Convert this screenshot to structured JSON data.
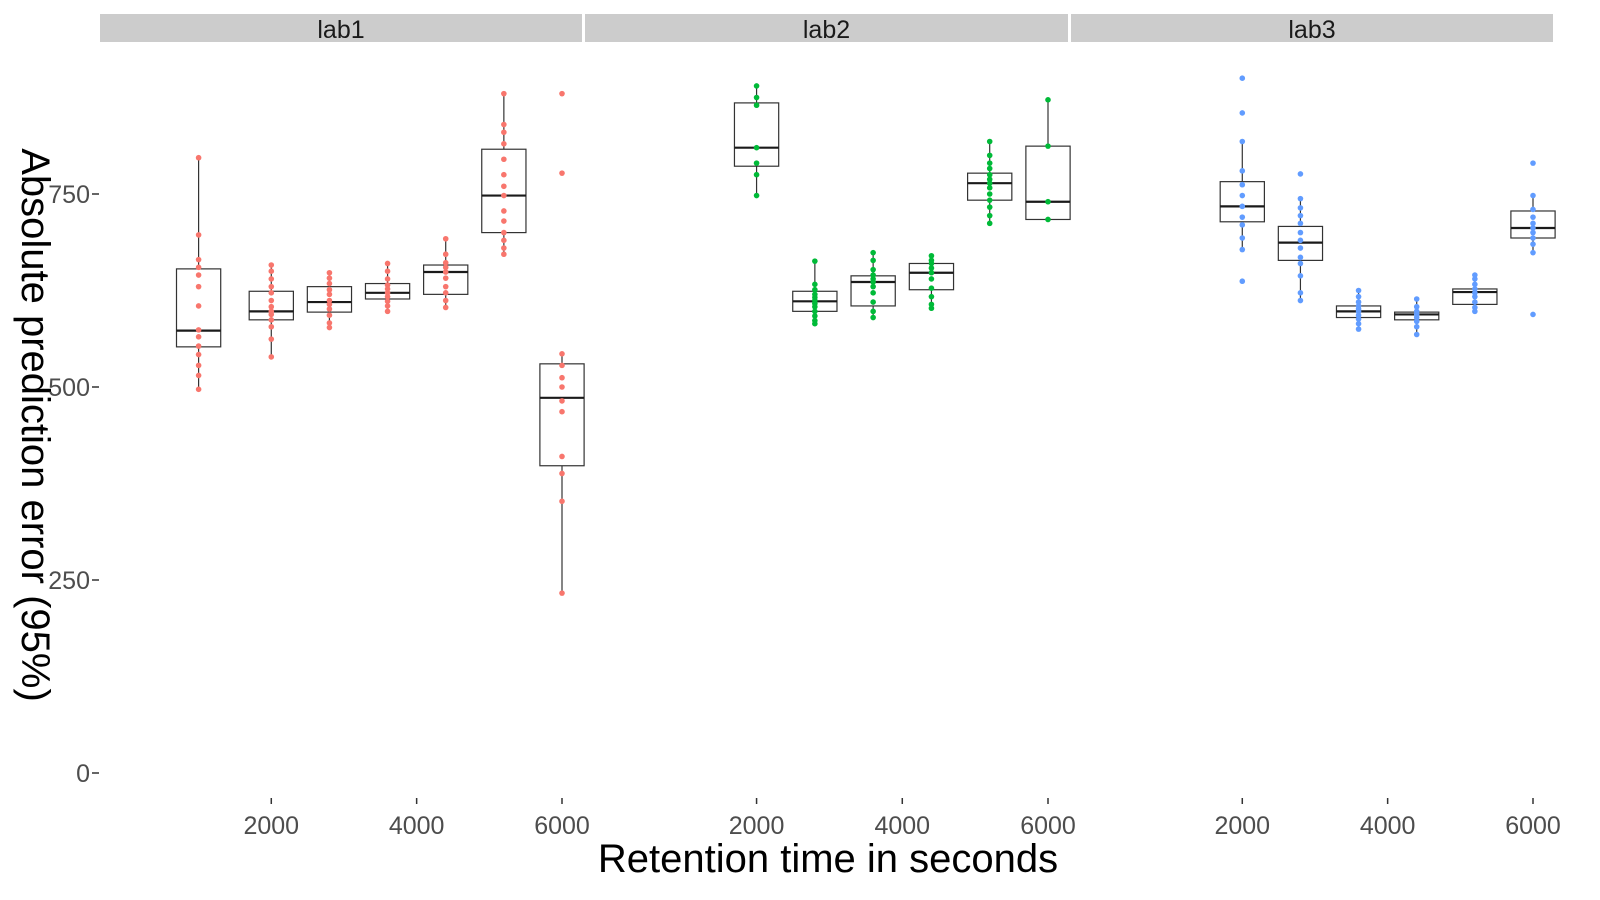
{
  "chart_data": {
    "type": "boxplot",
    "title": "",
    "xlabel": "Retention time in seconds",
    "ylabel": "Absolute prediction error (95%)",
    "xlim": [
      400,
      6000
    ],
    "ylim": [
      -30,
      930
    ],
    "x_ticks": [
      2000,
      4000,
      6000
    ],
    "y_ticks": [
      0,
      250,
      500,
      750
    ],
    "grid": false,
    "legend": "none",
    "panels": [
      {
        "label": "lab1",
        "color": "#F8766D",
        "groups": [
          {
            "x": 1000,
            "q1": 552,
            "median": 573,
            "q3": 653,
            "whisker_low": 497,
            "whisker_high": 797,
            "points": [
              497,
              515,
              528,
              542,
              553,
              565,
              574,
              605,
              630,
              645,
              655,
              665,
              697,
              797
            ]
          },
          {
            "x": 2000,
            "q1": 587,
            "median": 598,
            "q3": 624,
            "whisker_low": 539,
            "whisker_high": 658,
            "points": [
              539,
              562,
              578,
              587,
              594,
              598,
              604,
              612,
              622,
              630,
              640,
              650,
              658
            ]
          },
          {
            "x": 2800,
            "q1": 597,
            "median": 610,
            "q3": 630,
            "whisker_low": 577,
            "whisker_high": 648,
            "points": [
              577,
              583,
              593,
              601,
              607,
              612,
              620,
              626,
              634,
              641,
              648
            ]
          },
          {
            "x": 3600,
            "q1": 614,
            "median": 622,
            "q3": 634,
            "whisker_low": 598,
            "whisker_high": 660,
            "points": [
              598,
              605,
              611,
              617,
              622,
              627,
              632,
              640,
              650,
              660
            ]
          },
          {
            "x": 4400,
            "q1": 620,
            "median": 649,
            "q3": 658,
            "whisker_low": 603,
            "whisker_high": 692,
            "points": [
              603,
              612,
              622,
              630,
              641,
              649,
              655,
              661,
              672,
              692
            ]
          },
          {
            "x": 5200,
            "q1": 700,
            "median": 748,
            "q3": 808,
            "whisker_low": 672,
            "whisker_high": 880,
            "points": [
              672,
              680,
              690,
              700,
              715,
              728,
              748,
              760,
              775,
              795,
              815,
              830,
              840,
              880
            ]
          },
          {
            "x": 6000,
            "q1": 398,
            "median": 486,
            "q3": 530,
            "whisker_low": 233,
            "whisker_high": 543,
            "points": [
              233,
              352,
              388,
              410,
              468,
              482,
              500,
              512,
              528,
              543,
              777,
              880
            ]
          }
        ]
      },
      {
        "label": "lab2",
        "color": "#00BA38",
        "groups": [
          {
            "x": 2000,
            "q1": 786,
            "median": 810,
            "q3": 868,
            "whisker_low": 748,
            "whisker_high": 890,
            "points": [
              748,
              775,
              790,
              810,
              865,
              875,
              890
            ]
          },
          {
            "x": 2800,
            "q1": 598,
            "median": 611,
            "q3": 624,
            "whisker_low": 582,
            "whisker_high": 663,
            "points": [
              582,
              586,
              592,
              598,
              604,
              608,
              612,
              616,
              620,
              626,
              633,
              663
            ]
          },
          {
            "x": 3600,
            "q1": 605,
            "median": 636,
            "q3": 644,
            "whisker_low": 590,
            "whisker_high": 674,
            "points": [
              590,
              598,
              610,
              622,
              630,
              636,
              640,
              645,
              652,
              664,
              674
            ]
          },
          {
            "x": 4400,
            "q1": 626,
            "median": 648,
            "q3": 660,
            "whisker_low": 602,
            "whisker_high": 670,
            "points": [
              602,
              607,
              617,
              628,
              640,
              648,
              654,
              660,
              664,
              670
            ]
          },
          {
            "x": 5200,
            "q1": 742,
            "median": 764,
            "q3": 777,
            "whisker_low": 712,
            "whisker_high": 818,
            "points": [
              712,
              722,
              733,
              742,
              750,
              758,
              764,
              769,
              775,
              783,
              790,
              800,
              818
            ]
          },
          {
            "x": 6000,
            "q1": 717,
            "median": 740,
            "q3": 812,
            "whisker_low": 717,
            "whisker_high": 872,
            "points": [
              717,
              740,
              812,
              872
            ]
          }
        ]
      },
      {
        "label": "lab3",
        "color": "#619CFF",
        "groups": [
          {
            "x": 2000,
            "q1": 714,
            "median": 734,
            "q3": 766,
            "whisker_low": 678,
            "whisker_high": 818,
            "points": [
              637,
              678,
              693,
              710,
              720,
              734,
              748,
              762,
              780,
              818,
              855,
              900
            ]
          },
          {
            "x": 2800,
            "q1": 664,
            "median": 687,
            "q3": 708,
            "whisker_low": 612,
            "whisker_high": 744,
            "points": [
              612,
              622,
              644,
              660,
              668,
              680,
              690,
              700,
              712,
              722,
              732,
              744,
              776
            ]
          },
          {
            "x": 3600,
            "q1": 590,
            "median": 598,
            "q3": 605,
            "whisker_low": 575,
            "whisker_high": 625,
            "points": [
              575,
              582,
              588,
              593,
              598,
              601,
              605,
              610,
              617,
              625
            ]
          },
          {
            "x": 4400,
            "q1": 587,
            "median": 594,
            "q3": 597,
            "whisker_low": 568,
            "whisker_high": 614,
            "points": [
              568,
              578,
              585,
              590,
              594,
              598,
              604,
              614
            ]
          },
          {
            "x": 5200,
            "q1": 607,
            "median": 623,
            "q3": 627,
            "whisker_low": 598,
            "whisker_high": 645,
            "points": [
              598,
              603,
              610,
              617,
              622,
              627,
              633,
              640,
              645
            ]
          },
          {
            "x": 6000,
            "q1": 693,
            "median": 706,
            "q3": 728,
            "whisker_low": 674,
            "whisker_high": 748,
            "points": [
              594,
              674,
              685,
              693,
              700,
              706,
              712,
              720,
              730,
              748,
              790
            ]
          }
        ]
      }
    ]
  }
}
